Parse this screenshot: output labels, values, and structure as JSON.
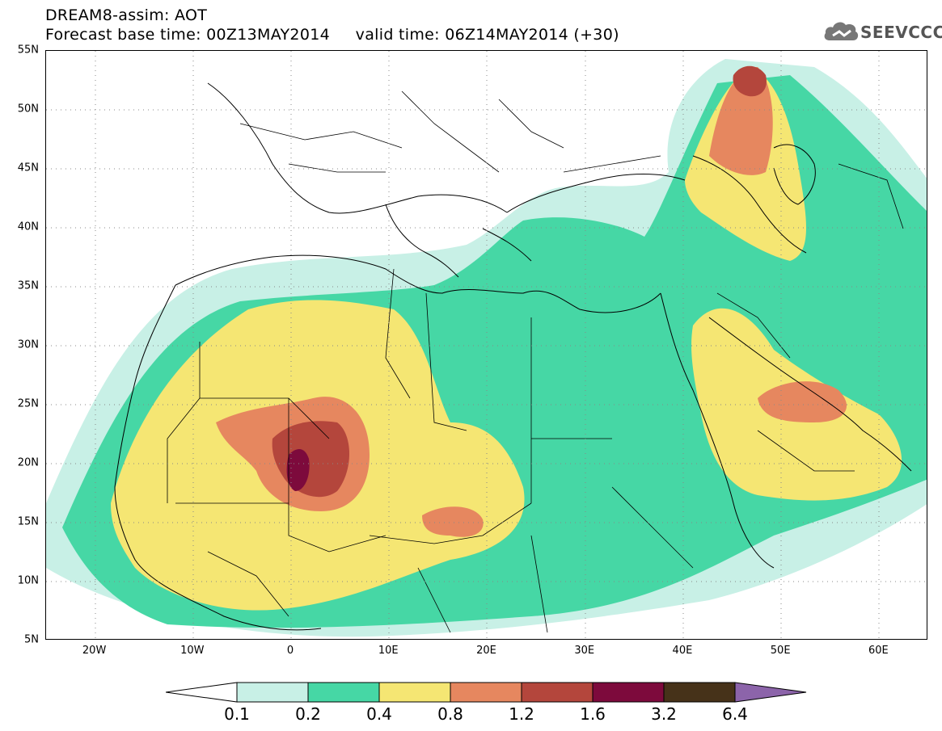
{
  "header": {
    "line1": "DREAM8-assim: AOT",
    "line2": "Forecast base time: 00Z13MAY2014     valid time: 06Z14MAY2014 (+30)"
  },
  "logo": {
    "text": "SEEVCCC",
    "icon": "cloud-icon"
  },
  "map": {
    "projection": "lat-lon",
    "lon_range": [
      -25,
      65
    ],
    "lat_range": [
      5,
      55
    ],
    "gridlines": "dotted",
    "lat_ticks": [
      "5N",
      "10N",
      "15N",
      "20N",
      "25N",
      "30N",
      "35N",
      "40N",
      "45N",
      "50N",
      "55N"
    ],
    "lon_ticks": [
      "20W",
      "10W",
      "0",
      "10E",
      "20E",
      "30E",
      "40E",
      "50E",
      "60E"
    ]
  },
  "colorbar": {
    "labels": [
      "0.1",
      "0.2",
      "0.4",
      "0.8",
      "1.2",
      "1.6",
      "3.2",
      "6.4"
    ],
    "colors": [
      "#ffffff",
      "#c8f0e6",
      "#46d7a5",
      "#f5e673",
      "#e6875f",
      "#b4463c",
      "#7d0a3c",
      "#463219",
      "#8c64aa"
    ]
  }
}
